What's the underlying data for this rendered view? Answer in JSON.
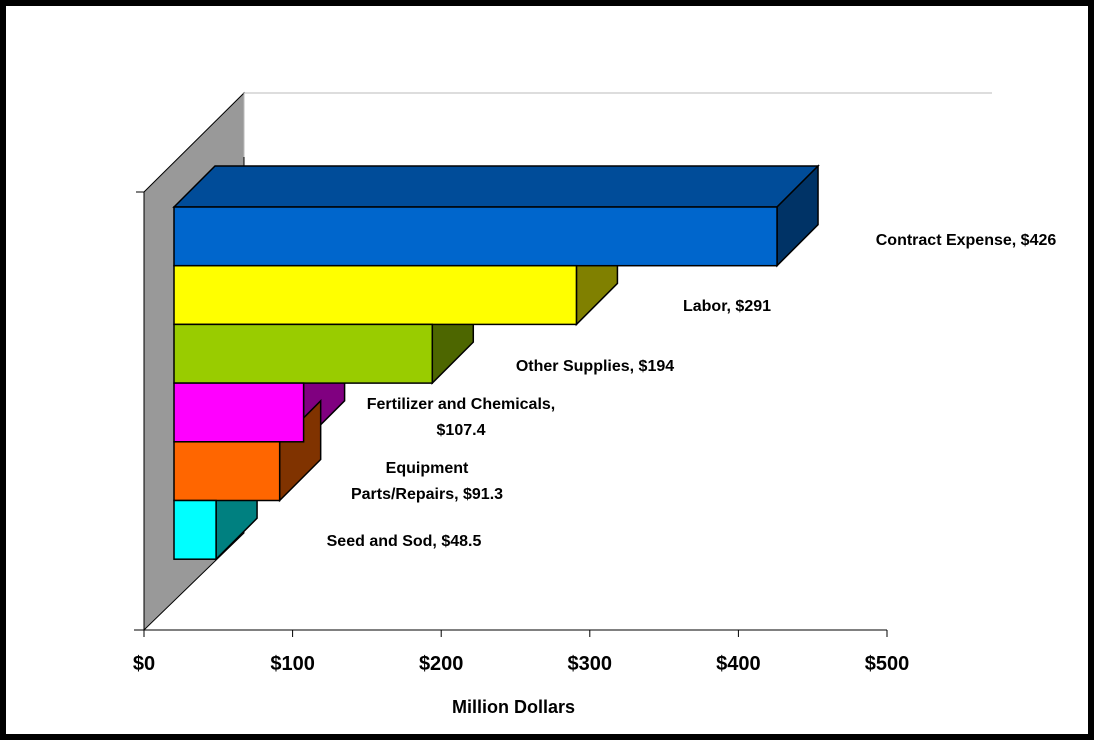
{
  "chart_data": {
    "type": "bar",
    "orientation": "horizontal",
    "style": "3d",
    "title": "",
    "xlabel": "Million Dollars",
    "ylabel": "",
    "xlim": [
      0,
      500
    ],
    "x_ticks": [
      {
        "value": 0,
        "label": "$0"
      },
      {
        "value": 100,
        "label": "$100"
      },
      {
        "value": 200,
        "label": "$200"
      },
      {
        "value": 300,
        "label": "$300"
      },
      {
        "value": 400,
        "label": "$400"
      },
      {
        "value": 500,
        "label": "$500"
      }
    ],
    "categories": [
      "Contract Expense",
      "Labor",
      "Other Supplies",
      "Fertilizer and Chemicals",
      "Equipment Parts/Repairs",
      "Seed and Sod"
    ],
    "values": [
      426,
      291,
      194,
      107.4,
      91.3,
      48.5
    ],
    "data_labels": [
      [
        "Contract Expense, $426"
      ],
      [
        "Labor, $291"
      ],
      [
        "Other Supplies, $194"
      ],
      [
        "Fertilizer and Chemicals,",
        "$107.4"
      ],
      [
        "Equipment",
        "Parts/Repairs, $91.3"
      ],
      [
        "Seed and Sod, $48.5"
      ]
    ],
    "colors": {
      "front": [
        "#0066CC",
        "#FFFF00",
        "#99CC00",
        "#FF00FF",
        "#FF6600",
        "#00FFFF"
      ],
      "side": [
        "#003366",
        "#808000",
        "#4D6600",
        "#800080",
        "#803300",
        "#008080"
      ],
      "top": [
        "#004C99"
      ],
      "wall": "#999999"
    },
    "grid": false,
    "legend": "none"
  }
}
